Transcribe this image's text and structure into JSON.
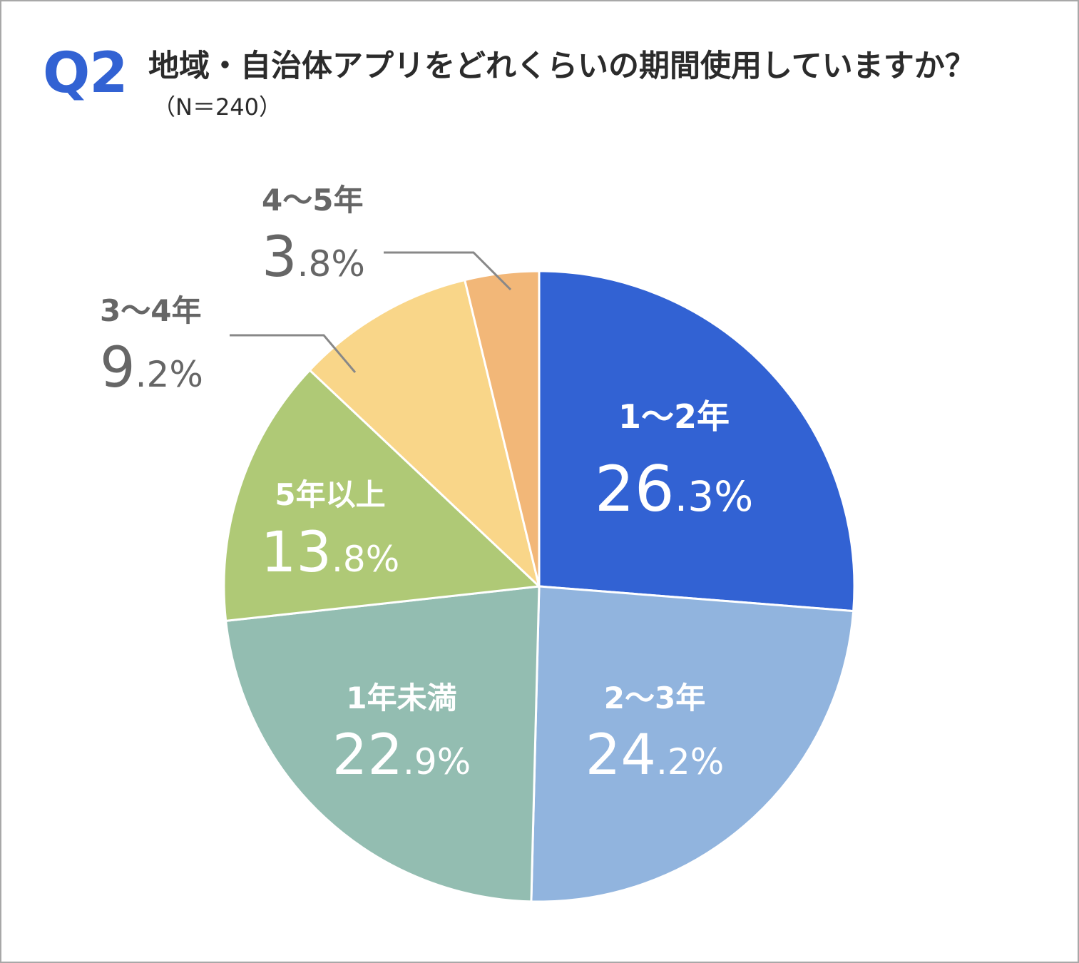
{
  "header": {
    "question_number": "Q2",
    "title": "地域・自治体アプリをどれくらいの期間使用していますか？",
    "sample": "（N＝240）"
  },
  "chart_data": {
    "type": "pie",
    "start": "12 o'clock",
    "direction": "clockwise",
    "slices": [
      {
        "label": "1～2年",
        "value": 26.3,
        "int": "26",
        "dec": ".3%",
        "color": "#3262d3",
        "text_color": "#ffffff",
        "label_position": "inside"
      },
      {
        "label": "2～3年",
        "value": 24.2,
        "int": "24",
        "dec": ".2%",
        "color": "#91b4de",
        "text_color": "#ffffff",
        "label_position": "inside"
      },
      {
        "label": "1年未満",
        "value": 22.9,
        "int": "22",
        "dec": ".9%",
        "color": "#93bdb1",
        "text_color": "#ffffff",
        "label_position": "inside"
      },
      {
        "label": "5年以上",
        "value": 13.8,
        "int": "13",
        "dec": ".8%",
        "color": "#afc976",
        "text_color": "#ffffff",
        "label_position": "inside"
      },
      {
        "label": "3～4年",
        "value": 9.2,
        "int": "9",
        "dec": ".2%",
        "color": "#f9d689",
        "text_color": "#666666",
        "label_position": "outside"
      },
      {
        "label": "4～5年",
        "value": 3.8,
        "int": "3",
        "dec": ".8%",
        "color": "#f2b778",
        "text_color": "#666666",
        "label_position": "outside"
      }
    ]
  }
}
